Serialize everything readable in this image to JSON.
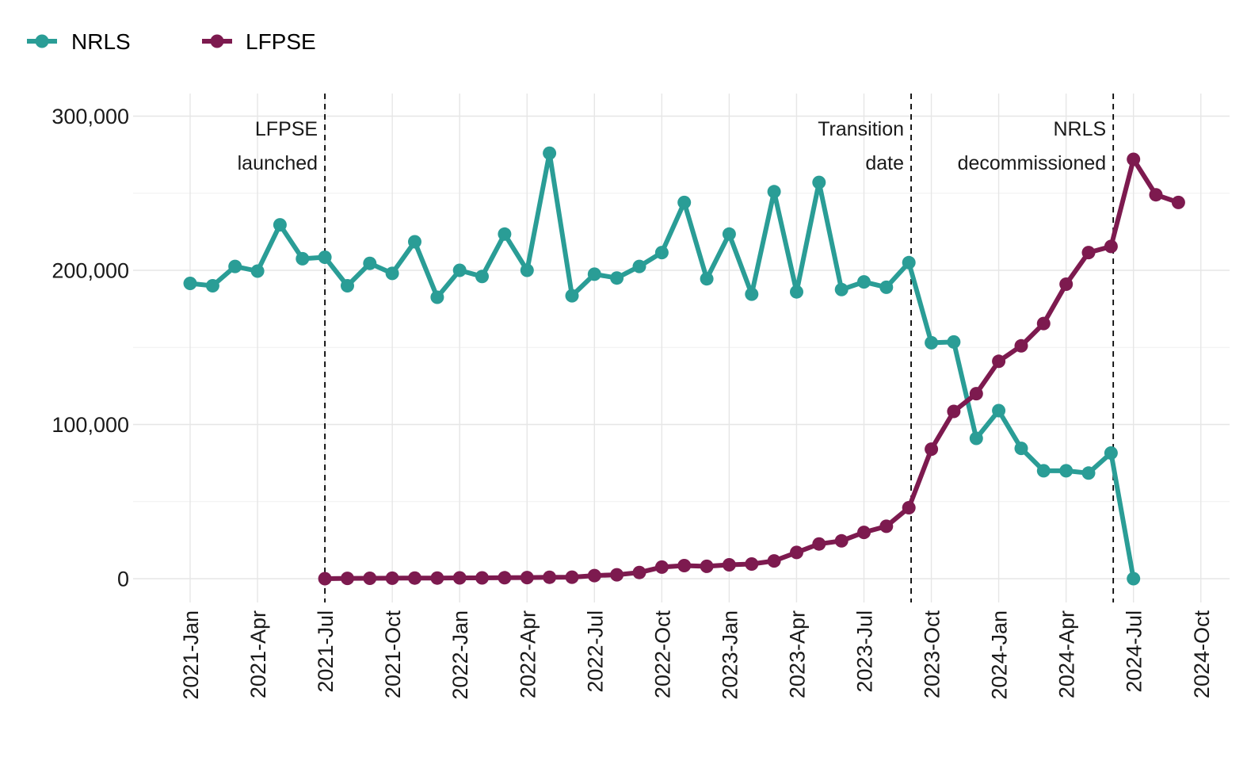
{
  "chart_data": {
    "type": "line",
    "title": "",
    "xlabel": "",
    "ylabel": "",
    "x_start": "2021-01",
    "x_end": "2024-10",
    "ylim": [
      -15000,
      315000
    ],
    "yticks": [
      0,
      100000,
      200000,
      300000
    ],
    "ytick_labels": [
      "0",
      "100,000",
      "200,000",
      "300,000"
    ],
    "xtick_labels": [
      "2021-Jan",
      "2021-Apr",
      "2021-Jul",
      "2021-Oct",
      "2022-Jan",
      "2022-Apr",
      "2022-Jul",
      "2022-Oct",
      "2023-Jan",
      "2023-Apr",
      "2023-Jul",
      "2023-Oct",
      "2024-Jan",
      "2024-Apr",
      "2024-Jul",
      "2024-Oct"
    ],
    "grid": true,
    "legend_position": "top-left",
    "series": [
      {
        "name": "NRLS",
        "color": "#2a9d96",
        "points": [
          [
            "2021-01",
            191500
          ],
          [
            "2021-02",
            190000
          ],
          [
            "2021-03",
            202500
          ],
          [
            "2021-04",
            199500
          ],
          [
            "2021-05",
            229500
          ],
          [
            "2021-06",
            207500
          ],
          [
            "2021-07",
            208500
          ],
          [
            "2021-08",
            190000
          ],
          [
            "2021-09",
            204500
          ],
          [
            "2021-10",
            198000
          ],
          [
            "2021-11",
            218500
          ],
          [
            "2021-12",
            182500
          ],
          [
            "2022-01",
            200000
          ],
          [
            "2022-02",
            196000
          ],
          [
            "2022-03",
            223500
          ],
          [
            "2022-04",
            200000
          ],
          [
            "2022-05",
            276000
          ],
          [
            "2022-06",
            183500
          ],
          [
            "2022-07",
            197500
          ],
          [
            "2022-08",
            195000
          ],
          [
            "2022-09",
            202500
          ],
          [
            "2022-10",
            211500
          ],
          [
            "2022-11",
            244000
          ],
          [
            "2022-12",
            194500
          ],
          [
            "2023-01",
            223500
          ],
          [
            "2023-02",
            184500
          ],
          [
            "2023-03",
            251000
          ],
          [
            "2023-04",
            186000
          ],
          [
            "2023-05",
            257000
          ],
          [
            "2023-06",
            187500
          ],
          [
            "2023-07",
            192500
          ],
          [
            "2023-08",
            189000
          ],
          [
            "2023-09",
            205000
          ],
          [
            "2023-10",
            153000
          ],
          [
            "2023-11",
            153500
          ],
          [
            "2023-12",
            91000
          ],
          [
            "2024-01",
            109000
          ],
          [
            "2024-02",
            84500
          ],
          [
            "2024-03",
            70000
          ],
          [
            "2024-04",
            70000
          ],
          [
            "2024-05",
            68500
          ],
          [
            "2024-06",
            81500
          ],
          [
            "2024-07",
            0
          ]
        ]
      },
      {
        "name": "LFPSE",
        "color": "#7d1a4f",
        "points": [
          [
            "2021-07",
            0
          ],
          [
            "2021-08",
            200
          ],
          [
            "2021-09",
            250
          ],
          [
            "2021-10",
            300
          ],
          [
            "2021-11",
            400
          ],
          [
            "2021-12",
            400
          ],
          [
            "2022-01",
            500
          ],
          [
            "2022-02",
            500
          ],
          [
            "2022-03",
            600
          ],
          [
            "2022-04",
            700
          ],
          [
            "2022-05",
            900
          ],
          [
            "2022-06",
            1000
          ],
          [
            "2022-07",
            2000
          ],
          [
            "2022-08",
            2500
          ],
          [
            "2022-09",
            4000
          ],
          [
            "2022-10",
            7500
          ],
          [
            "2022-11",
            8500
          ],
          [
            "2022-12",
            8000
          ],
          [
            "2023-01",
            9000
          ],
          [
            "2023-02",
            9500
          ],
          [
            "2023-03",
            11500
          ],
          [
            "2023-04",
            17000
          ],
          [
            "2023-05",
            22500
          ],
          [
            "2023-06",
            24500
          ],
          [
            "2023-07",
            30000
          ],
          [
            "2023-08",
            34000
          ],
          [
            "2023-09",
            46000
          ],
          [
            "2023-10",
            84000
          ],
          [
            "2023-11",
            108500
          ],
          [
            "2023-12",
            120000
          ],
          [
            "2024-01",
            141000
          ],
          [
            "2024-02",
            151000
          ],
          [
            "2024-03",
            165500
          ],
          [
            "2024-04",
            191000
          ],
          [
            "2024-05",
            211500
          ],
          [
            "2024-06",
            215500
          ],
          [
            "2024-07",
            272000
          ],
          [
            "2024-08",
            249000
          ],
          [
            "2024-09",
            244000
          ]
        ]
      }
    ],
    "annotations": [
      {
        "x": "2021-07",
        "lines": [
          "LFPSE",
          "launched"
        ]
      },
      {
        "x": "2023-09",
        "lines": [
          "Transition",
          "date"
        ]
      },
      {
        "x": "2024-06",
        "lines": [
          "NRLS",
          "decommissioned"
        ]
      }
    ]
  }
}
